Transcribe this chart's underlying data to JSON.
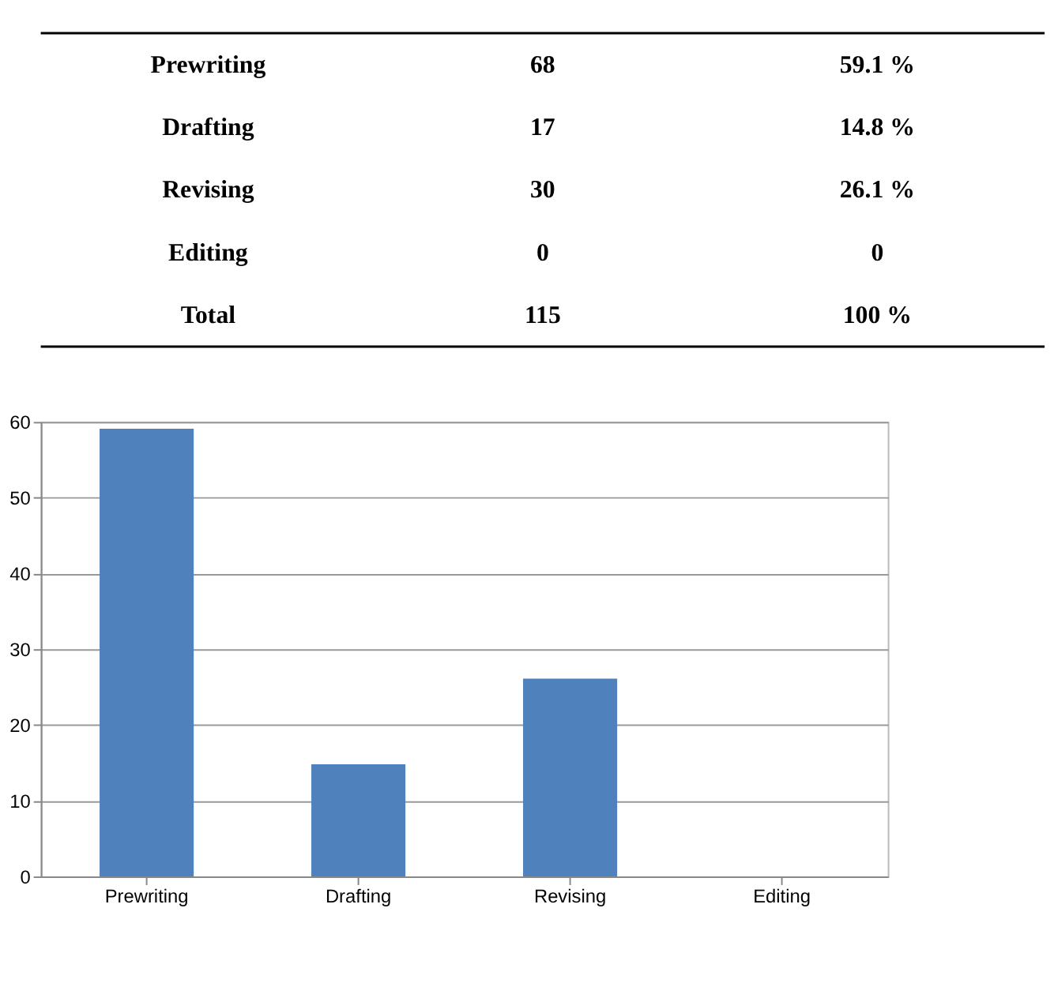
{
  "chart_data": [
    {
      "type": "other",
      "categories": [
        "Prewriting",
        "Drafting",
        "Revising",
        "Editing",
        "Total"
      ],
      "data_labels": true,
      "series": [
        {
          "values": [
            68,
            17,
            30,
            0,
            115
          ]
        },
        {
          "values": [
            59.1,
            14.8,
            26.1,
            0,
            100
          ],
          "value_labels": [
            "59.1 %",
            "14.8 %",
            "26.1 %",
            "0",
            "100 %"
          ]
        }
      ]
    },
    {
      "type": "bar",
      "categories": [
        "Prewriting",
        "Drafting",
        "Revising",
        "Editing"
      ],
      "values": [
        59.1,
        14.8,
        26.1,
        0
      ],
      "color": "#4f81bd",
      "ylim": [
        0,
        60
      ],
      "yticks": [
        0,
        10,
        20,
        30,
        40,
        50,
        60
      ],
      "grid": "y"
    }
  ]
}
